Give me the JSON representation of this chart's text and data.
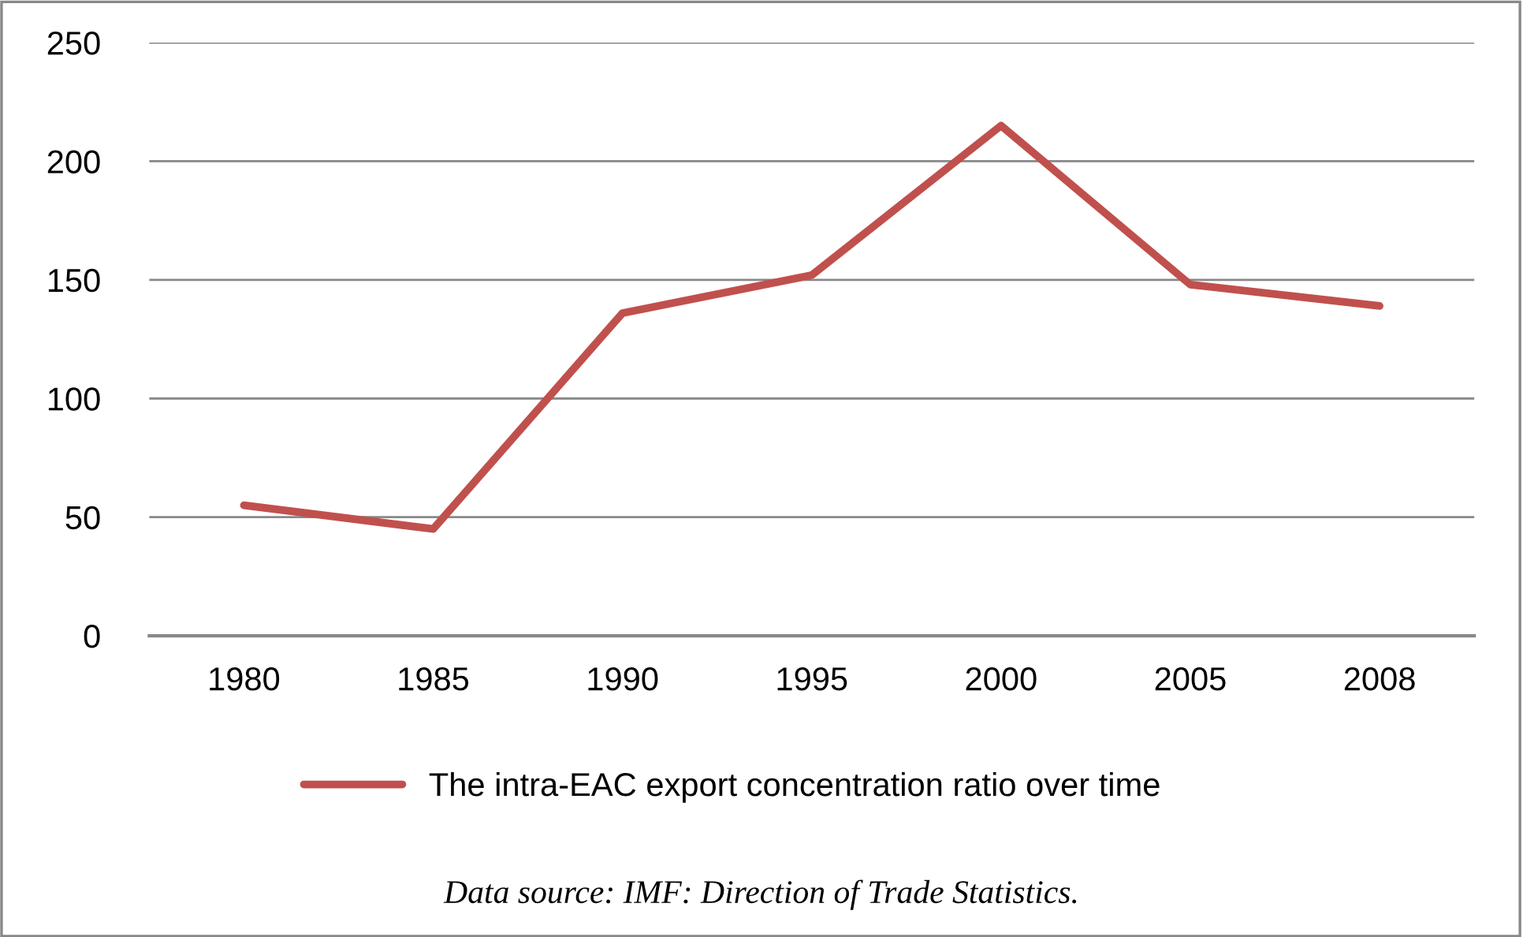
{
  "chart_data": {
    "type": "line",
    "categories": [
      "1980",
      "1985",
      "1990",
      "1995",
      "2000",
      "2005",
      "2008"
    ],
    "series": [
      {
        "name": "The intra-EAC export concentration ratio over time",
        "color": "#c0504d",
        "values": [
          55,
          45,
          136,
          152,
          215,
          148,
          139
        ]
      }
    ],
    "ylim": [
      0,
      250
    ],
    "yticks": [
      0,
      50,
      100,
      150,
      200,
      250
    ],
    "grid": "y",
    "legend": "bottom",
    "marker": "none",
    "line_style": "solid",
    "annotations": [
      "Data source: IMF: Direction of Trade Statistics."
    ]
  }
}
